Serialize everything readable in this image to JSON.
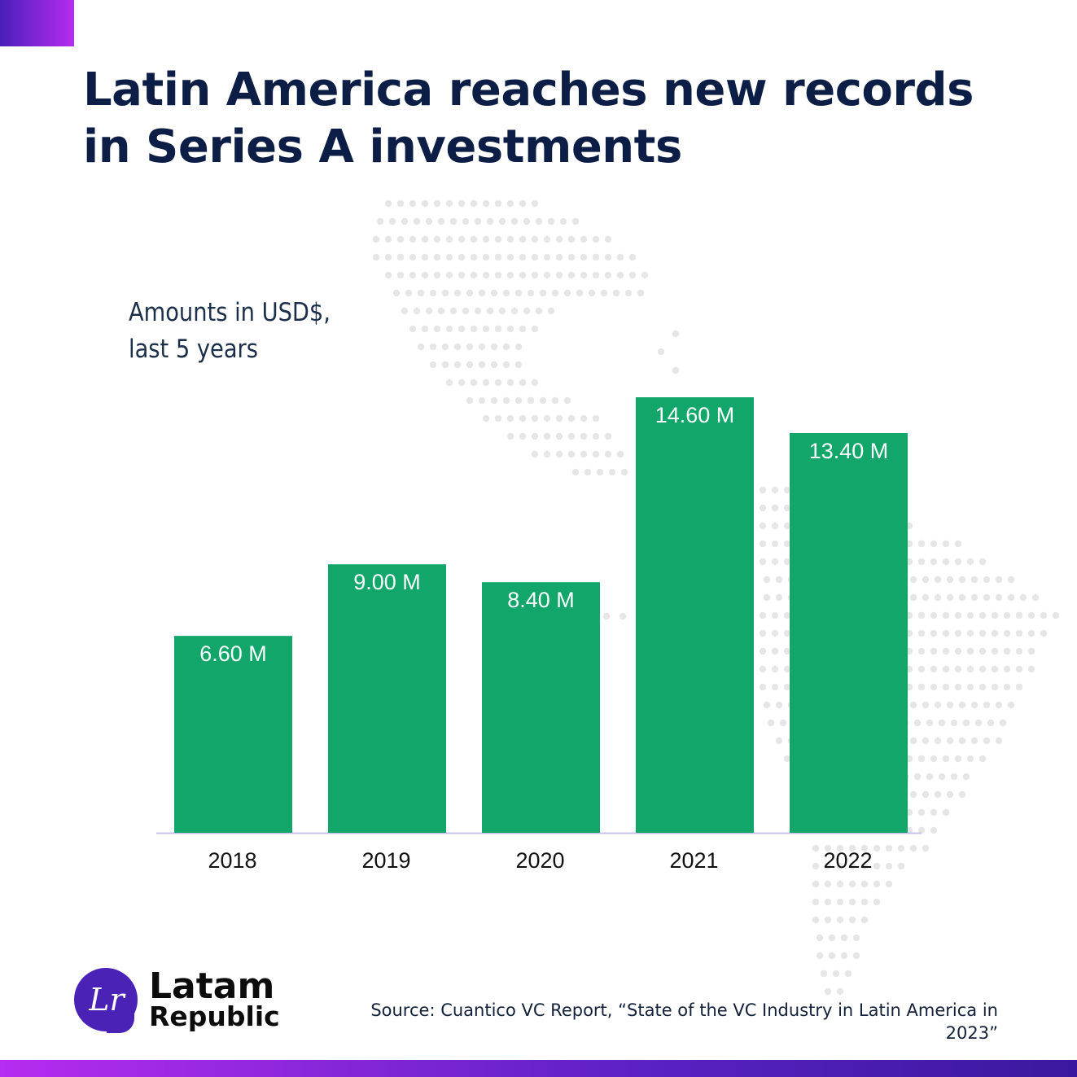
{
  "chart_data": {
    "type": "bar",
    "title": "Latin America reaches new records in Series A investments",
    "subtitle_lines": [
      "Amounts in USD$,",
      "last 5 years"
    ],
    "categories": [
      "2018",
      "2019",
      "2020",
      "2021",
      "2022"
    ],
    "values": [
      6.6,
      9.0,
      8.4,
      14.6,
      13.4
    ],
    "value_labels": [
      "6.60 M",
      "9.00 M",
      "8.40 M",
      "14.60 M",
      "13.40 M"
    ],
    "unit": "M USD",
    "ylim": [
      0,
      14.6
    ],
    "grid": false,
    "legend": "none",
    "bar_color": "#13a66b",
    "axis_color": "#c7c2e6"
  },
  "source": "Source: Cuantico VC Report, “State of the VC Industry in Latin America in 2023”",
  "brand": {
    "initials": "Lr",
    "name_line1": "Latam",
    "name_line2": "Republic",
    "accent": "#4b22b6"
  }
}
